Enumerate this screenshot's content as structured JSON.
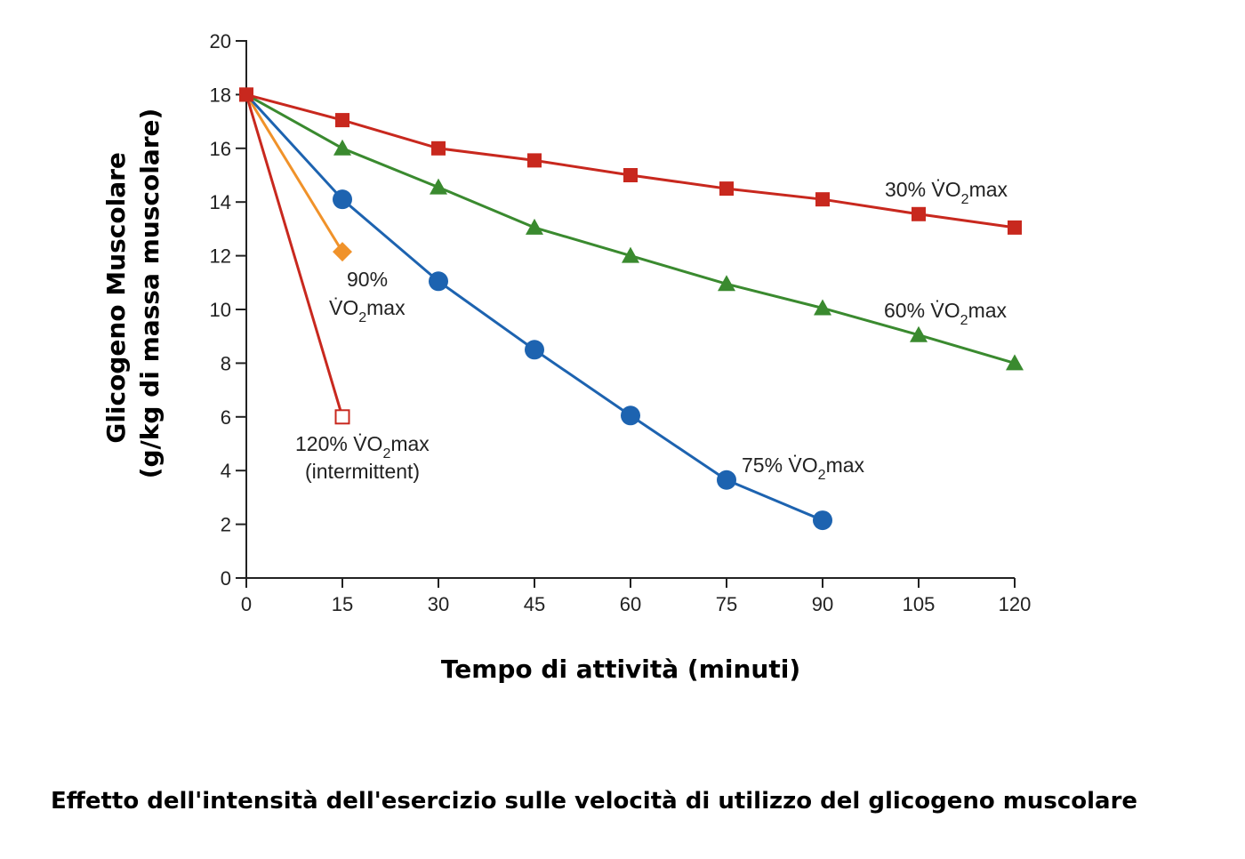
{
  "chart_data": {
    "type": "line",
    "xlabel": "Tempo di attività (minuti)",
    "ylabel": [
      "Glicogeno Muscolare",
      "(g/kg di massa muscolare)"
    ],
    "xlim": [
      0,
      120
    ],
    "ylim": [
      0,
      20
    ],
    "x_ticks": [
      0,
      15,
      30,
      45,
      60,
      75,
      90,
      105,
      120
    ],
    "y_ticks": [
      0,
      2,
      4,
      6,
      8,
      10,
      12,
      14,
      16,
      18,
      20
    ],
    "grid": false,
    "legend": "none (inline labels)",
    "series": [
      {
        "label_lines": [
          "30% V̇O",
          "2",
          "max"
        ],
        "color": "#c8281e",
        "marker": "square",
        "x": [
          0,
          15,
          30,
          45,
          60,
          75,
          90,
          105,
          120
        ],
        "y": [
          18,
          17.05,
          16,
          15.55,
          15,
          14.5,
          14.1,
          13.55,
          13.05
        ]
      },
      {
        "label_lines": [
          "60% V̇O",
          "2",
          "max"
        ],
        "color": "#3a8a2f",
        "marker": "triangle",
        "x": [
          0,
          15,
          30,
          45,
          60,
          75,
          90,
          105,
          120
        ],
        "y": [
          18,
          16,
          14.55,
          13.05,
          12,
          10.95,
          10.05,
          9.05,
          8
        ]
      },
      {
        "label_lines": [
          "75% V̇O",
          "2",
          "max"
        ],
        "color": "#1d63b0",
        "marker": "circle",
        "x": [
          0,
          15,
          30,
          45,
          60,
          75,
          90
        ],
        "y": [
          18,
          14.1,
          11.05,
          8.5,
          6.05,
          3.65,
          2.15
        ]
      },
      {
        "label_lines": [
          "90%",
          "V̇O",
          "2",
          "max"
        ],
        "color": "#f0922a",
        "marker": "diamond",
        "x": [
          0,
          15
        ],
        "y": [
          18,
          12.15
        ]
      },
      {
        "label_lines": [
          "120% V̇O",
          "2",
          "max",
          "(intermittent)"
        ],
        "color": "#c8281e",
        "marker": "open-square",
        "x": [
          0,
          15
        ],
        "y": [
          18,
          6
        ]
      }
    ]
  },
  "caption": "Effetto dell'intensità dell'esercizio sulle velocità di utilizzo del glicogeno muscolare"
}
